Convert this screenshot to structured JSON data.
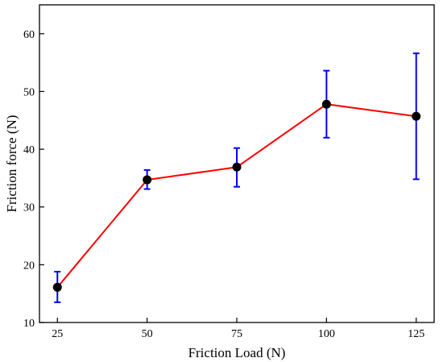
{
  "chart_data": {
    "type": "line",
    "xlabel": "Friction Load (N)",
    "ylabel": "Friction force (N)",
    "x": [
      25,
      50,
      75,
      100,
      125
    ],
    "xticks": [
      25,
      50,
      75,
      100,
      125
    ],
    "xlim": [
      20,
      130
    ],
    "yticks": [
      10,
      20,
      30,
      40,
      50,
      60
    ],
    "ylim": [
      10,
      65
    ],
    "grid": false,
    "series": [
      {
        "values": [
          16.1,
          34.7,
          36.9,
          47.8,
          45.7
        ],
        "error_low": [
          13.5,
          33.1,
          33.5,
          42.0,
          34.8
        ],
        "error_high": [
          18.8,
          36.4,
          40.2,
          53.6,
          56.6
        ],
        "line_color": "#ff0000",
        "marker_color": "#000000",
        "errorbar_color": "#0000ff"
      }
    ]
  }
}
